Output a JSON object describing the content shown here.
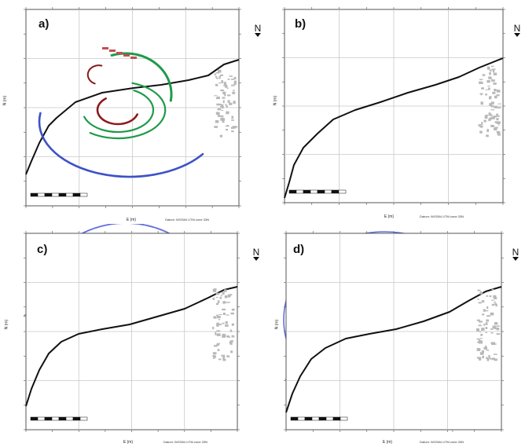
{
  "panels": [
    {
      "id": "a",
      "label": "a)",
      "north": "N",
      "xlabel": "E (m)",
      "ylabel": "N (m)",
      "datum": "Datum: WGS84 UTM zone 33N"
    },
    {
      "id": "b",
      "label": "b)",
      "north": "N",
      "xlabel": "E (m)",
      "ylabel": "N (m)",
      "datum": "Datum: WGS84 UTM zone 33N"
    },
    {
      "id": "c",
      "label": "c)",
      "north": "N",
      "xlabel": "E (m)",
      "ylabel": "N (m)",
      "datum": "Datum: WGS84 UTM zone 33N"
    },
    {
      "id": "d",
      "label": "d)",
      "north": "N",
      "xlabel": "E (m)",
      "ylabel": "N (m)",
      "datum": "Datum: WGS84 UTM zone 33N"
    }
  ],
  "colors": {
    "grid": "#c8c8c8",
    "frame": "#555555",
    "coast": "#111111",
    "contour_gray": "#9a9a9a",
    "contour_dark": "#444444",
    "blue": "#3d52c8",
    "green": "#1f9a4a",
    "darkred": "#8b1a1a",
    "red": "#e0503a",
    "orange": "#c87a20",
    "ring_blue": "#6470e0"
  }
}
